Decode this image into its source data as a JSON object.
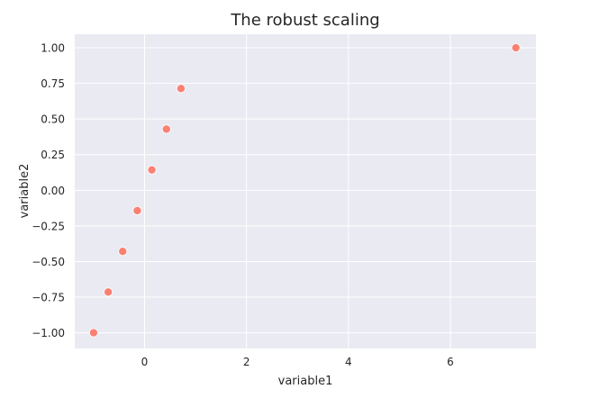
{
  "chart_data": {
    "type": "scatter",
    "title": "The robust scaling",
    "xlabel": "variable1",
    "ylabel": "variable2",
    "x": [
      -1.0,
      -0.714,
      -0.429,
      -0.143,
      0.143,
      0.429,
      0.714,
      7.286
    ],
    "y": [
      -1.0,
      -0.714,
      -0.429,
      -0.143,
      0.143,
      0.429,
      0.714,
      1.0
    ],
    "xlim": [
      -1.37,
      7.68
    ],
    "ylim": [
      -1.11,
      1.095
    ],
    "xticks": [
      0,
      2,
      4,
      6
    ],
    "xtick_labels": [
      "0",
      "2",
      "4",
      "6"
    ],
    "yticks": [
      -1.0,
      -0.75,
      -0.5,
      -0.25,
      0.0,
      0.25,
      0.5,
      0.75,
      1.0
    ],
    "ytick_labels": [
      "−1.00",
      "−0.75",
      "−0.50",
      "−0.25",
      "0.00",
      "0.25",
      "0.50",
      "0.75",
      "1.00"
    ],
    "grid": true,
    "style": "seaborn darkgrid",
    "colors": {
      "point": "#fa8072",
      "axes_bg": "#eaeaf2",
      "grid": "#ffffff"
    }
  }
}
